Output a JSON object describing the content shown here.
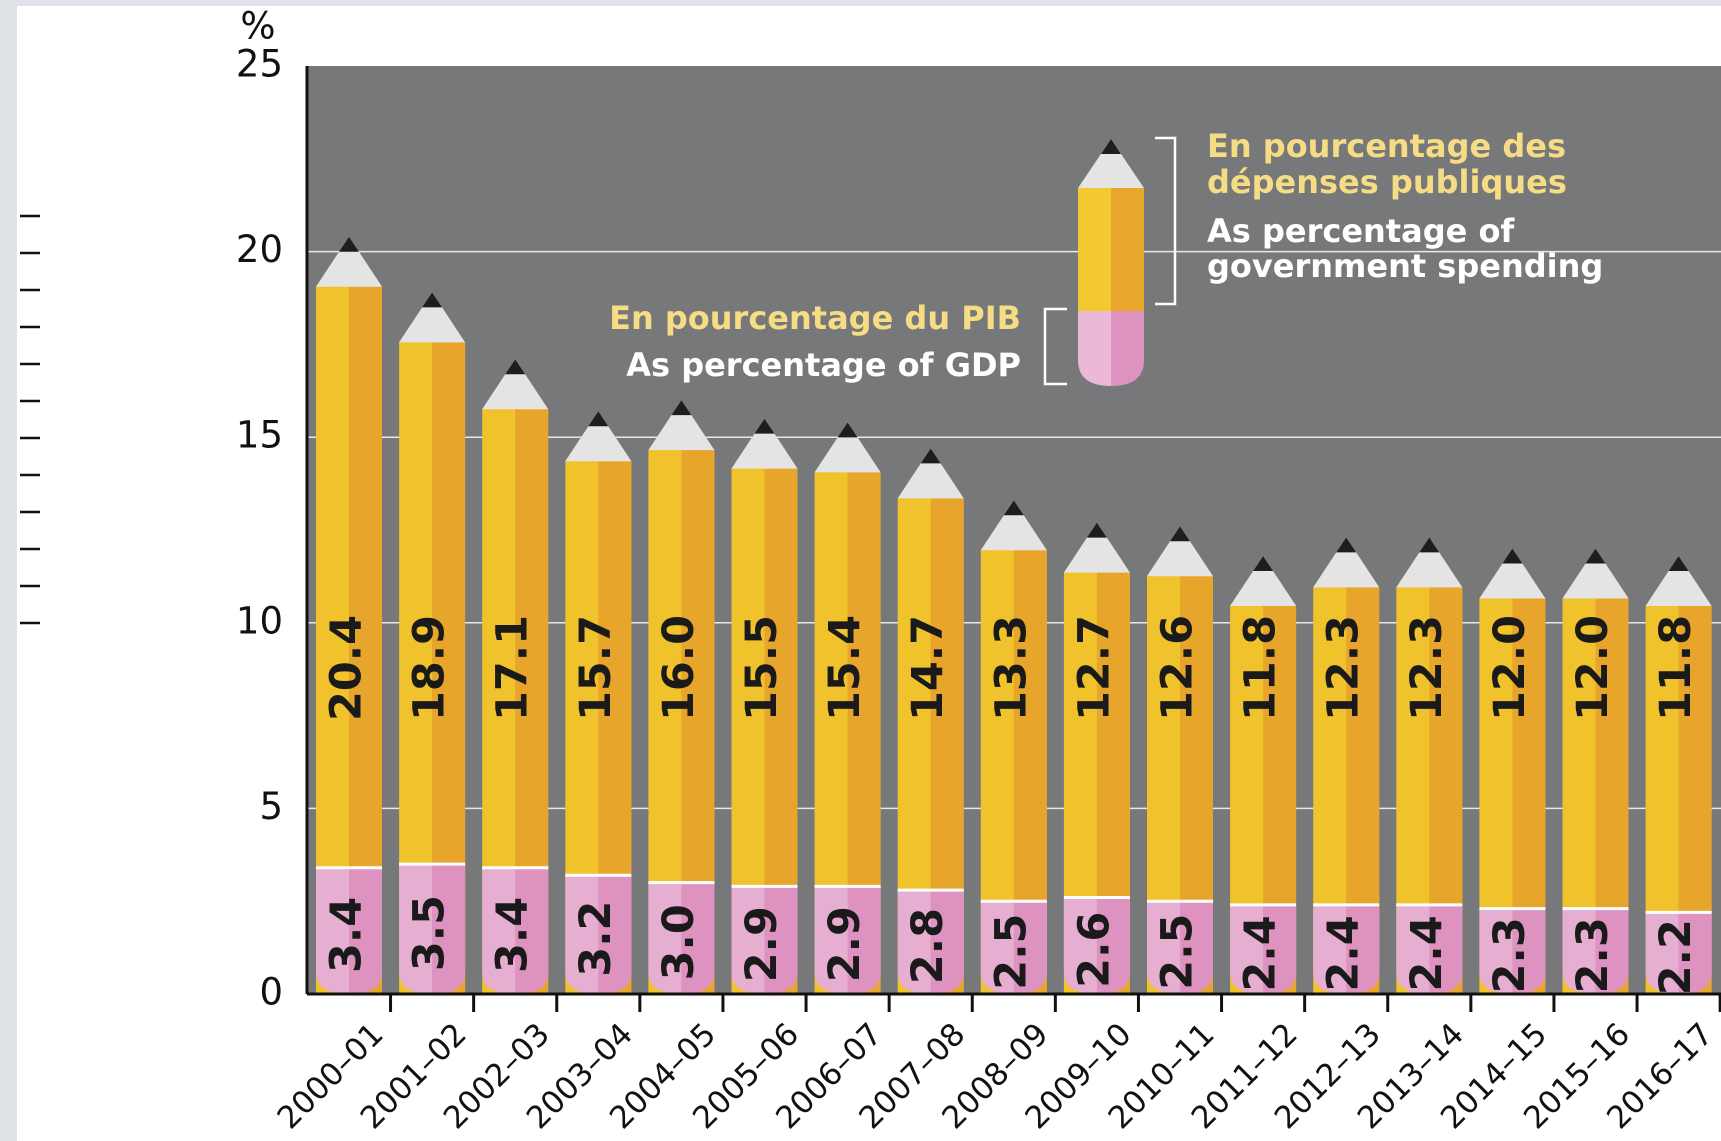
{
  "chart_data": {
    "type": "pencil_bar",
    "y_unit": "%",
    "categories": [
      "2000–01",
      "2001–02",
      "2002–03",
      "2003–04",
      "2004–05",
      "2005–06",
      "2006–07",
      "2007–08",
      "2008–09",
      "2009–10",
      "2010–11",
      "2011–12",
      "2012–13",
      "2013–14",
      "2014–15",
      "2015–16",
      "2016–17"
    ],
    "series": [
      {
        "color": "#f0c22c",
        "values": [
          20.4,
          18.9,
          17.1,
          15.7,
          16.0,
          15.5,
          15.4,
          14.7,
          13.3,
          12.7,
          12.6,
          11.8,
          12.3,
          12.3,
          12.0,
          12.0,
          11.8
        ],
        "value_labels": [
          "20.4",
          "18.9",
          "17.1",
          "15.7",
          "16.0",
          "15.5",
          "15.4",
          "14.7",
          "13.3",
          "12.7",
          "12.6",
          "11.8",
          "12.3",
          "12.3",
          "12.0",
          "12.0",
          "11.8"
        ]
      },
      {
        "color": "#e6aed0",
        "values": [
          3.4,
          3.5,
          3.4,
          3.2,
          3.0,
          2.9,
          2.9,
          2.8,
          2.5,
          2.6,
          2.5,
          2.4,
          2.4,
          2.4,
          2.3,
          2.3,
          2.2
        ],
        "value_labels": [
          "3.4",
          "3.5",
          "3.4",
          "3.2",
          "3.0",
          "2.9",
          "2.9",
          "2.8",
          "2.5",
          "2.6",
          "2.5",
          "2.4",
          "2.4",
          "2.4",
          "2.3",
          "2.3",
          "2.2"
        ]
      }
    ],
    "legend": {
      "spending_fr": [
        "En pourcentage des",
        "dépenses publiques"
      ],
      "spending_en": [
        "As percentage of",
        "government spending"
      ],
      "gdp_fr": "En pourcentage du PIB",
      "gdp_en": "As percentage of GDP"
    },
    "ylim": [
      0,
      25
    ],
    "yticks": [
      0,
      5,
      10,
      15,
      20,
      25
    ],
    "grid": true
  }
}
